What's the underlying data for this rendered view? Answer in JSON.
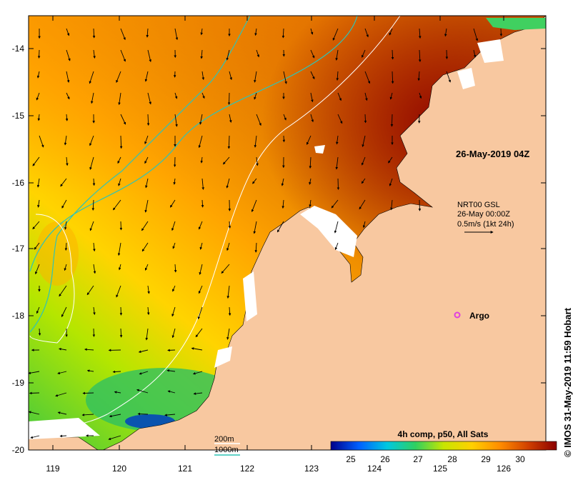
{
  "map": {
    "timestamp": "26-May-2019 04Z",
    "current_source": {
      "line1": "NRT00 GSL",
      "line2": "26-May 00:00Z",
      "line3": "0.5m/s (1kt 24h)"
    },
    "argo_label": "Argo",
    "credit": "© IMOS 31-May-2019 11:59 Hobart",
    "isobaths": {
      "shallow": "200m",
      "deep": "1000m",
      "shallow_color": "#ffffff",
      "deep_color": "#2ec4b6"
    },
    "longitude_ticks": [
      "119",
      "120",
      "121",
      "122",
      "123",
      "124",
      "125",
      "126"
    ],
    "latitude_ticks": [
      "-14",
      "-15",
      "-16",
      "-17",
      "-18",
      "-19",
      "-20"
    ],
    "colorbar": {
      "title": "4h comp, p50, All Sats",
      "labels": [
        "25",
        "26",
        "27",
        "28",
        "29",
        "30"
      ],
      "colors": [
        "#00008b",
        "#0060ff",
        "#00c8e0",
        "#30d060",
        "#c8e600",
        "#ffd000",
        "#ff8c00",
        "#d04000",
        "#8b0000"
      ]
    },
    "land_color": "#f8c8a0",
    "argo_color": "#e040e0"
  }
}
